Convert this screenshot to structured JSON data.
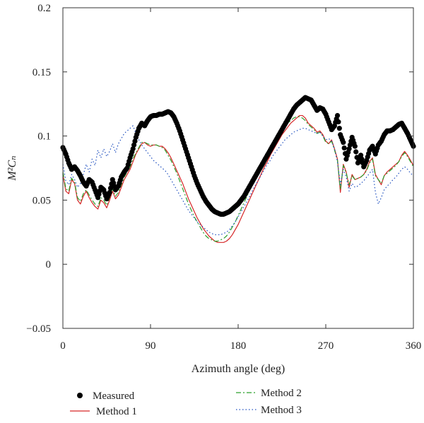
{
  "chart_data": {
    "type": "line",
    "xlabel": "Azimuth angle (deg)",
    "ylabel": "M²Cₙ",
    "xlim": [
      0,
      360
    ],
    "ylim": [
      -0.05,
      0.2
    ],
    "xticks": [
      "0",
      "90",
      "180",
      "270",
      "360"
    ],
    "yticks": [
      "−0.05",
      "0",
      "0.05",
      "0.1",
      "0.15",
      "0.2"
    ],
    "grid": false,
    "legend_position": "bottom",
    "series": [
      {
        "name": "Measured",
        "style": "dots",
        "color": "#000000",
        "x": [
          0,
          3,
          6,
          9,
          12,
          15,
          18,
          21,
          24,
          27,
          30,
          33,
          36,
          39,
          42,
          45,
          48,
          51,
          54,
          57,
          60,
          63,
          66,
          69,
          72,
          75,
          78,
          81,
          84,
          87,
          90,
          93,
          96,
          99,
          102,
          105,
          108,
          111,
          114,
          117,
          120,
          123,
          126,
          129,
          132,
          135,
          138,
          141,
          144,
          147,
          150,
          153,
          156,
          159,
          162,
          165,
          168,
          171,
          174,
          177,
          180,
          183,
          186,
          189,
          192,
          195,
          198,
          201,
          204,
          207,
          210,
          213,
          216,
          219,
          222,
          225,
          228,
          231,
          234,
          237,
          240,
          243,
          246,
          249,
          252,
          255,
          258,
          261,
          264,
          267,
          270,
          273,
          276,
          279,
          282,
          285,
          288,
          291,
          294,
          297,
          300,
          303,
          306,
          309,
          312,
          315,
          318,
          321,
          324,
          327,
          330,
          333,
          336,
          339,
          342,
          345,
          348,
          351,
          354,
          357,
          360
        ],
        "y": [
          0.091,
          0.086,
          0.079,
          0.074,
          0.076,
          0.073,
          0.069,
          0.064,
          0.061,
          0.066,
          0.064,
          0.058,
          0.052,
          0.06,
          0.058,
          0.051,
          0.056,
          0.066,
          0.058,
          0.061,
          0.068,
          0.072,
          0.075,
          0.083,
          0.09,
          0.099,
          0.106,
          0.11,
          0.108,
          0.112,
          0.115,
          0.116,
          0.116,
          0.117,
          0.117,
          0.118,
          0.119,
          0.118,
          0.115,
          0.11,
          0.104,
          0.097,
          0.09,
          0.083,
          0.076,
          0.069,
          0.063,
          0.058,
          0.053,
          0.049,
          0.046,
          0.043,
          0.041,
          0.04,
          0.039,
          0.039,
          0.04,
          0.041,
          0.043,
          0.045,
          0.047,
          0.05,
          0.053,
          0.057,
          0.061,
          0.065,
          0.069,
          0.073,
          0.077,
          0.081,
          0.085,
          0.089,
          0.093,
          0.097,
          0.101,
          0.105,
          0.109,
          0.113,
          0.117,
          0.121,
          0.124,
          0.126,
          0.128,
          0.13,
          0.129,
          0.128,
          0.124,
          0.12,
          0.122,
          0.121,
          0.117,
          0.111,
          0.105,
          0.108,
          0.116,
          0.101,
          0.095,
          0.082,
          0.09,
          0.099,
          0.092,
          0.079,
          0.085,
          0.076,
          0.081,
          0.089,
          0.092,
          0.086,
          0.093,
          0.096,
          0.101,
          0.104,
          0.104,
          0.105,
          0.107,
          0.109,
          0.11,
          0.106,
          0.102,
          0.097,
          0.092
        ]
      },
      {
        "name": "Method 1",
        "style": "solid",
        "color": "#d62728",
        "x": [
          0,
          3,
          6,
          9,
          12,
          15,
          18,
          21,
          24,
          27,
          30,
          33,
          36,
          39,
          42,
          45,
          48,
          51,
          54,
          57,
          60,
          63,
          66,
          69,
          72,
          75,
          78,
          81,
          84,
          87,
          90,
          93,
          96,
          99,
          102,
          105,
          108,
          111,
          114,
          117,
          120,
          123,
          126,
          129,
          132,
          135,
          138,
          141,
          144,
          147,
          150,
          153,
          156,
          159,
          162,
          165,
          168,
          171,
          174,
          177,
          180,
          183,
          186,
          189,
          192,
          195,
          198,
          201,
          204,
          207,
          210,
          213,
          216,
          219,
          222,
          225,
          228,
          231,
          234,
          237,
          240,
          243,
          246,
          249,
          252,
          255,
          258,
          261,
          264,
          267,
          270,
          273,
          276,
          279,
          282,
          285,
          288,
          291,
          294,
          297,
          300,
          303,
          306,
          309,
          312,
          315,
          318,
          321,
          324,
          327,
          330,
          333,
          336,
          339,
          342,
          345,
          348,
          351,
          354,
          357,
          360
        ],
        "y": [
          0.07,
          0.057,
          0.055,
          0.066,
          0.063,
          0.05,
          0.047,
          0.053,
          0.057,
          0.052,
          0.048,
          0.045,
          0.043,
          0.05,
          0.048,
          0.044,
          0.05,
          0.057,
          0.051,
          0.054,
          0.06,
          0.066,
          0.07,
          0.074,
          0.08,
          0.086,
          0.09,
          0.094,
          0.095,
          0.093,
          0.092,
          0.093,
          0.093,
          0.092,
          0.092,
          0.09,
          0.087,
          0.083,
          0.078,
          0.073,
          0.068,
          0.063,
          0.057,
          0.051,
          0.046,
          0.041,
          0.036,
          0.032,
          0.028,
          0.025,
          0.022,
          0.02,
          0.018,
          0.017,
          0.017,
          0.017,
          0.018,
          0.02,
          0.023,
          0.027,
          0.031,
          0.036,
          0.041,
          0.046,
          0.051,
          0.056,
          0.061,
          0.066,
          0.071,
          0.076,
          0.08,
          0.085,
          0.089,
          0.093,
          0.097,
          0.101,
          0.104,
          0.107,
          0.11,
          0.112,
          0.114,
          0.116,
          0.116,
          0.114,
          0.11,
          0.108,
          0.106,
          0.103,
          0.104,
          0.101,
          0.096,
          0.094,
          0.097,
          0.09,
          0.082,
          0.056,
          0.078,
          0.072,
          0.06,
          0.07,
          0.066,
          0.067,
          0.068,
          0.07,
          0.074,
          0.08,
          0.083,
          0.07,
          0.066,
          0.062,
          0.069,
          0.072,
          0.074,
          0.076,
          0.078,
          0.08,
          0.085,
          0.088,
          0.085,
          0.081,
          0.077
        ]
      },
      {
        "name": "Method 2",
        "style": "dashdot",
        "color": "#2ca02c",
        "x": [
          0,
          3,
          6,
          9,
          12,
          15,
          18,
          21,
          24,
          27,
          30,
          33,
          36,
          39,
          42,
          45,
          48,
          51,
          54,
          57,
          60,
          63,
          66,
          69,
          72,
          75,
          78,
          81,
          84,
          87,
          90,
          93,
          96,
          99,
          102,
          105,
          108,
          111,
          114,
          117,
          120,
          123,
          126,
          129,
          132,
          135,
          138,
          141,
          144,
          147,
          150,
          153,
          156,
          159,
          162,
          165,
          168,
          171,
          174,
          177,
          180,
          183,
          186,
          189,
          192,
          195,
          198,
          201,
          204,
          207,
          210,
          213,
          216,
          219,
          222,
          225,
          228,
          231,
          234,
          237,
          240,
          243,
          246,
          249,
          252,
          255,
          258,
          261,
          264,
          267,
          270,
          273,
          276,
          279,
          282,
          285,
          288,
          291,
          294,
          297,
          300,
          303,
          306,
          309,
          312,
          315,
          318,
          321,
          324,
          327,
          330,
          333,
          336,
          339,
          342,
          345,
          348,
          351,
          354,
          357,
          360
        ],
        "y": [
          0.072,
          0.059,
          0.057,
          0.067,
          0.064,
          0.052,
          0.049,
          0.055,
          0.058,
          0.054,
          0.05,
          0.047,
          0.045,
          0.052,
          0.05,
          0.046,
          0.052,
          0.059,
          0.053,
          0.056,
          0.062,
          0.068,
          0.072,
          0.076,
          0.082,
          0.087,
          0.091,
          0.095,
          0.095,
          0.094,
          0.093,
          0.093,
          0.093,
          0.092,
          0.091,
          0.089,
          0.085,
          0.081,
          0.076,
          0.071,
          0.065,
          0.059,
          0.053,
          0.047,
          0.042,
          0.037,
          0.033,
          0.029,
          0.025,
          0.022,
          0.02,
          0.019,
          0.018,
          0.018,
          0.019,
          0.02,
          0.022,
          0.025,
          0.029,
          0.033,
          0.038,
          0.043,
          0.048,
          0.053,
          0.058,
          0.063,
          0.068,
          0.072,
          0.077,
          0.081,
          0.085,
          0.089,
          0.093,
          0.097,
          0.101,
          0.104,
          0.107,
          0.11,
          0.112,
          0.114,
          0.115,
          0.115,
          0.114,
          0.112,
          0.109,
          0.107,
          0.105,
          0.102,
          0.103,
          0.1,
          0.095,
          0.094,
          0.096,
          0.089,
          0.081,
          0.058,
          0.077,
          0.071,
          0.062,
          0.069,
          0.066,
          0.067,
          0.068,
          0.07,
          0.073,
          0.079,
          0.082,
          0.069,
          0.066,
          0.063,
          0.069,
          0.071,
          0.073,
          0.075,
          0.077,
          0.08,
          0.084,
          0.087,
          0.084,
          0.08,
          0.076
        ]
      },
      {
        "name": "Method 3",
        "style": "dotted",
        "color": "#1f4fbf",
        "x": [
          0,
          3,
          6,
          9,
          12,
          15,
          18,
          21,
          24,
          27,
          30,
          33,
          36,
          39,
          42,
          45,
          48,
          51,
          54,
          57,
          60,
          63,
          66,
          69,
          72,
          75,
          78,
          81,
          84,
          87,
          90,
          93,
          96,
          99,
          102,
          105,
          108,
          111,
          114,
          117,
          120,
          123,
          126,
          129,
          132,
          135,
          138,
          141,
          144,
          147,
          150,
          153,
          156,
          159,
          162,
          165,
          168,
          171,
          174,
          177,
          180,
          183,
          186,
          189,
          192,
          195,
          198,
          201,
          204,
          207,
          210,
          213,
          216,
          219,
          222,
          225,
          228,
          231,
          234,
          237,
          240,
          243,
          246,
          249,
          252,
          255,
          258,
          261,
          264,
          267,
          270,
          273,
          276,
          279,
          282,
          285,
          288,
          291,
          294,
          297,
          300,
          303,
          306,
          309,
          312,
          315,
          318,
          321,
          324,
          327,
          330,
          333,
          336,
          339,
          342,
          345,
          348,
          351,
          354,
          357,
          360
        ],
        "y": [
          0.078,
          0.065,
          0.062,
          0.07,
          0.066,
          0.06,
          0.063,
          0.07,
          0.078,
          0.072,
          0.082,
          0.077,
          0.089,
          0.083,
          0.09,
          0.084,
          0.088,
          0.094,
          0.087,
          0.094,
          0.098,
          0.102,
          0.104,
          0.106,
          0.108,
          0.102,
          0.097,
          0.093,
          0.09,
          0.087,
          0.084,
          0.081,
          0.079,
          0.077,
          0.075,
          0.073,
          0.07,
          0.066,
          0.062,
          0.058,
          0.054,
          0.05,
          0.046,
          0.042,
          0.039,
          0.036,
          0.033,
          0.031,
          0.029,
          0.027,
          0.025,
          0.024,
          0.023,
          0.023,
          0.023,
          0.024,
          0.025,
          0.027,
          0.03,
          0.033,
          0.037,
          0.041,
          0.045,
          0.049,
          0.053,
          0.058,
          0.062,
          0.066,
          0.07,
          0.074,
          0.078,
          0.081,
          0.085,
          0.088,
          0.091,
          0.094,
          0.097,
          0.099,
          0.101,
          0.103,
          0.104,
          0.105,
          0.106,
          0.106,
          0.105,
          0.104,
          0.103,
          0.102,
          0.103,
          0.1,
          0.097,
          0.098,
          0.096,
          0.09,
          0.08,
          0.062,
          0.074,
          0.068,
          0.057,
          0.063,
          0.06,
          0.061,
          0.063,
          0.065,
          0.068,
          0.071,
          0.074,
          0.056,
          0.047,
          0.052,
          0.058,
          0.061,
          0.063,
          0.066,
          0.068,
          0.071,
          0.074,
          0.076,
          0.074,
          0.071,
          0.069
        ]
      }
    ]
  },
  "legend": {
    "items": [
      {
        "label": "Measured"
      },
      {
        "label": "Method 1"
      },
      {
        "label": "Method 2"
      },
      {
        "label": "Method 3"
      }
    ]
  }
}
